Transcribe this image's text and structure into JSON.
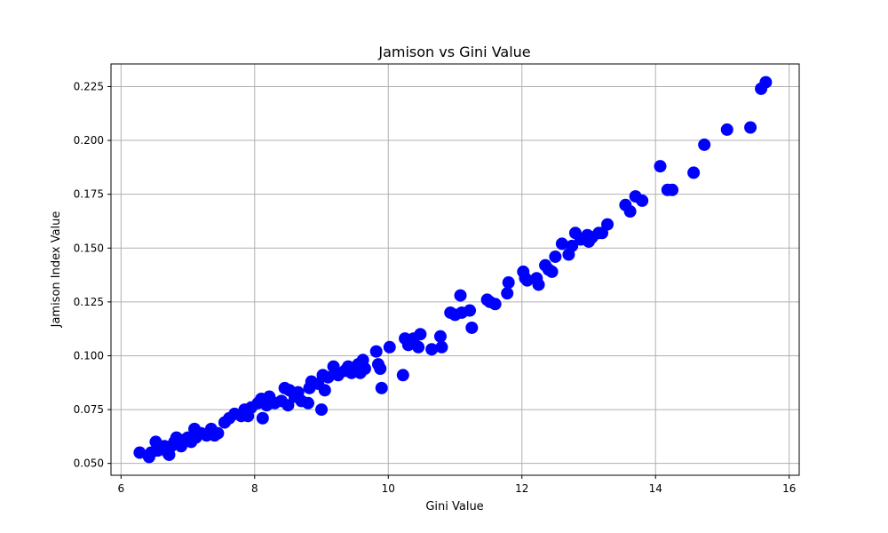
{
  "chart_data": {
    "type": "scatter",
    "title": "Jamison vs Gini Value",
    "xlabel": "Gini Value",
    "ylabel": "Jamison Index Value",
    "xlim": [
      5.85,
      16.15
    ],
    "ylim": [
      0.0445,
      0.2355
    ],
    "xticks": [
      6,
      8,
      10,
      12,
      14,
      16
    ],
    "yticks": [
      0.05,
      0.075,
      0.1,
      0.125,
      0.15,
      0.175,
      0.2,
      0.225
    ],
    "xtick_labels": [
      "6",
      "8",
      "10",
      "12",
      "14",
      "16"
    ],
    "ytick_labels": [
      "0.050",
      "0.075",
      "0.100",
      "0.125",
      "0.150",
      "0.175",
      "0.200",
      "0.225"
    ],
    "grid": true,
    "marker_color": "#0000ff",
    "series": [
      {
        "points": [
          [
            6.28,
            0.055
          ],
          [
            6.42,
            0.053
          ],
          [
            6.45,
            0.055
          ],
          [
            6.52,
            0.06
          ],
          [
            6.55,
            0.056
          ],
          [
            6.6,
            0.057
          ],
          [
            6.65,
            0.058
          ],
          [
            6.7,
            0.055
          ],
          [
            6.72,
            0.054
          ],
          [
            6.75,
            0.058
          ],
          [
            6.8,
            0.06
          ],
          [
            6.83,
            0.062
          ],
          [
            6.85,
            0.059
          ],
          [
            6.9,
            0.058
          ],
          [
            6.95,
            0.061
          ],
          [
            7.0,
            0.062
          ],
          [
            7.05,
            0.06
          ],
          [
            7.1,
            0.066
          ],
          [
            7.12,
            0.062
          ],
          [
            7.2,
            0.064
          ],
          [
            7.28,
            0.063
          ],
          [
            7.35,
            0.066
          ],
          [
            7.4,
            0.063
          ],
          [
            7.45,
            0.064
          ],
          [
            7.55,
            0.069
          ],
          [
            7.62,
            0.071
          ],
          [
            7.7,
            0.073
          ],
          [
            7.8,
            0.072
          ],
          [
            7.85,
            0.075
          ],
          [
            7.9,
            0.072
          ],
          [
            7.95,
            0.076
          ],
          [
            8.05,
            0.078
          ],
          [
            8.1,
            0.08
          ],
          [
            8.12,
            0.071
          ],
          [
            8.18,
            0.077
          ],
          [
            8.22,
            0.081
          ],
          [
            8.3,
            0.078
          ],
          [
            8.4,
            0.079
          ],
          [
            8.45,
            0.085
          ],
          [
            8.5,
            0.077
          ],
          [
            8.52,
            0.084
          ],
          [
            8.6,
            0.081
          ],
          [
            8.65,
            0.083
          ],
          [
            8.7,
            0.079
          ],
          [
            8.8,
            0.078
          ],
          [
            8.82,
            0.085
          ],
          [
            8.85,
            0.088
          ],
          [
            8.95,
            0.087
          ],
          [
            9.0,
            0.075
          ],
          [
            9.02,
            0.091
          ],
          [
            9.05,
            0.084
          ],
          [
            9.1,
            0.09
          ],
          [
            9.18,
            0.095
          ],
          [
            9.25,
            0.091
          ],
          [
            9.35,
            0.093
          ],
          [
            9.4,
            0.095
          ],
          [
            9.45,
            0.092
          ],
          [
            9.5,
            0.094
          ],
          [
            9.55,
            0.096
          ],
          [
            9.58,
            0.092
          ],
          [
            9.62,
            0.098
          ],
          [
            9.65,
            0.094
          ],
          [
            9.82,
            0.102
          ],
          [
            9.85,
            0.096
          ],
          [
            9.88,
            0.094
          ],
          [
            9.9,
            0.085
          ],
          [
            10.02,
            0.104
          ],
          [
            10.22,
            0.091
          ],
          [
            10.25,
            0.108
          ],
          [
            10.3,
            0.105
          ],
          [
            10.38,
            0.108
          ],
          [
            10.45,
            0.104
          ],
          [
            10.48,
            0.11
          ],
          [
            10.65,
            0.103
          ],
          [
            10.78,
            0.109
          ],
          [
            10.8,
            0.104
          ],
          [
            10.93,
            0.12
          ],
          [
            11.0,
            0.119
          ],
          [
            11.08,
            0.128
          ],
          [
            11.1,
            0.12
          ],
          [
            11.22,
            0.121
          ],
          [
            11.25,
            0.113
          ],
          [
            11.48,
            0.126
          ],
          [
            11.52,
            0.125
          ],
          [
            11.6,
            0.124
          ],
          [
            11.78,
            0.129
          ],
          [
            11.8,
            0.134
          ],
          [
            12.02,
            0.139
          ],
          [
            12.05,
            0.136
          ],
          [
            12.08,
            0.135
          ],
          [
            12.22,
            0.136
          ],
          [
            12.25,
            0.133
          ],
          [
            12.35,
            0.142
          ],
          [
            12.4,
            0.14
          ],
          [
            12.45,
            0.139
          ],
          [
            12.5,
            0.146
          ],
          [
            12.6,
            0.152
          ],
          [
            12.7,
            0.147
          ],
          [
            12.75,
            0.151
          ],
          [
            12.8,
            0.157
          ],
          [
            12.88,
            0.154
          ],
          [
            12.98,
            0.156
          ],
          [
            13.0,
            0.153
          ],
          [
            13.05,
            0.155
          ],
          [
            13.15,
            0.157
          ],
          [
            13.2,
            0.157
          ],
          [
            13.28,
            0.161
          ],
          [
            13.55,
            0.17
          ],
          [
            13.62,
            0.167
          ],
          [
            13.7,
            0.174
          ],
          [
            13.8,
            0.172
          ],
          [
            14.07,
            0.188
          ],
          [
            14.18,
            0.177
          ],
          [
            14.25,
            0.177
          ],
          [
            14.57,
            0.185
          ],
          [
            14.73,
            0.198
          ],
          [
            15.07,
            0.205
          ],
          [
            15.42,
            0.206
          ],
          [
            15.58,
            0.224
          ],
          [
            15.65,
            0.227
          ]
        ]
      }
    ]
  }
}
